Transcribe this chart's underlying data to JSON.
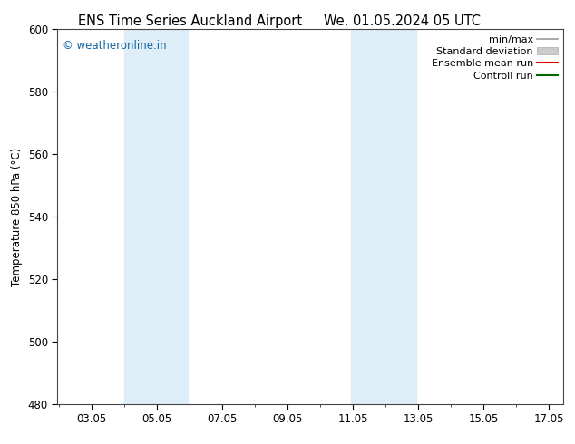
{
  "title_left": "ENS Time Series Auckland Airport",
  "title_right": "We. 01.05.2024 05 UTC",
  "ylabel": "Temperature 850 hPa (°C)",
  "xlim": [
    2.0,
    17.5
  ],
  "ylim": [
    480,
    600
  ],
  "yticks": [
    480,
    500,
    520,
    540,
    560,
    580,
    600
  ],
  "xticks": [
    3.05,
    5.05,
    7.05,
    9.05,
    11.05,
    13.05,
    15.05,
    17.05
  ],
  "xticklabels": [
    "03.05",
    "05.05",
    "07.05",
    "09.05",
    "11.05",
    "13.05",
    "15.05",
    "17.05"
  ],
  "shaded_bands": [
    {
      "xmin": 4.05,
      "xmax": 6.0
    },
    {
      "xmin": 11.0,
      "xmax": 13.0
    }
  ],
  "band_color": "#ddeef8",
  "watermark": "© weatheronline.in",
  "watermark_color": "#1565a0",
  "legend_items": [
    {
      "label": "min/max",
      "color": "#999999",
      "lw": 1.2
    },
    {
      "label": "Standard deviation",
      "color": "#cccccc",
      "lw": 6
    },
    {
      "label": "Ensemble mean run",
      "color": "#dd0000",
      "lw": 1.5
    },
    {
      "label": "Controll run",
      "color": "#006600",
      "lw": 1.5
    }
  ],
  "bg_color": "#ffffff",
  "plot_bg_color": "#ffffff",
  "title_fontsize": 10.5,
  "tick_fontsize": 8.5,
  "ylabel_fontsize": 8.5,
  "legend_fontsize": 8,
  "watermark_fontsize": 8.5
}
